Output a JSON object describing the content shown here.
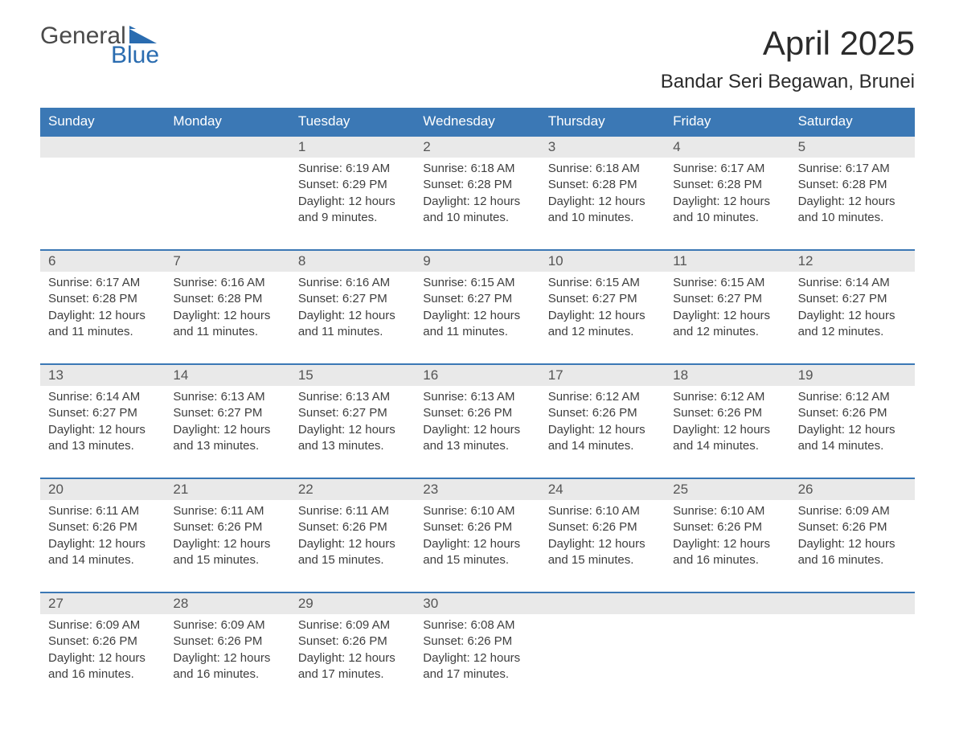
{
  "logo": {
    "text_general": "General",
    "text_blue": "Blue",
    "flag_color": "#2a6cb0"
  },
  "header": {
    "month_title": "April 2025",
    "location": "Bandar Seri Begawan, Brunei"
  },
  "colors": {
    "header_bg": "#3b78b5",
    "header_text": "#ffffff",
    "daynum_bg": "#e9e9e9",
    "row_border": "#3b78b5",
    "body_text": "#3e3e3e",
    "title_text": "#2b2b2b"
  },
  "weekdays": [
    "Sunday",
    "Monday",
    "Tuesday",
    "Wednesday",
    "Thursday",
    "Friday",
    "Saturday"
  ],
  "weeks": [
    [
      {
        "day": "",
        "sunrise": "",
        "sunset": "",
        "daylight": ""
      },
      {
        "day": "",
        "sunrise": "",
        "sunset": "",
        "daylight": ""
      },
      {
        "day": "1",
        "sunrise": "Sunrise: 6:19 AM",
        "sunset": "Sunset: 6:29 PM",
        "daylight": "Daylight: 12 hours and 9 minutes."
      },
      {
        "day": "2",
        "sunrise": "Sunrise: 6:18 AM",
        "sunset": "Sunset: 6:28 PM",
        "daylight": "Daylight: 12 hours and 10 minutes."
      },
      {
        "day": "3",
        "sunrise": "Sunrise: 6:18 AM",
        "sunset": "Sunset: 6:28 PM",
        "daylight": "Daylight: 12 hours and 10 minutes."
      },
      {
        "day": "4",
        "sunrise": "Sunrise: 6:17 AM",
        "sunset": "Sunset: 6:28 PM",
        "daylight": "Daylight: 12 hours and 10 minutes."
      },
      {
        "day": "5",
        "sunrise": "Sunrise: 6:17 AM",
        "sunset": "Sunset: 6:28 PM",
        "daylight": "Daylight: 12 hours and 10 minutes."
      }
    ],
    [
      {
        "day": "6",
        "sunrise": "Sunrise: 6:17 AM",
        "sunset": "Sunset: 6:28 PM",
        "daylight": "Daylight: 12 hours and 11 minutes."
      },
      {
        "day": "7",
        "sunrise": "Sunrise: 6:16 AM",
        "sunset": "Sunset: 6:28 PM",
        "daylight": "Daylight: 12 hours and 11 minutes."
      },
      {
        "day": "8",
        "sunrise": "Sunrise: 6:16 AM",
        "sunset": "Sunset: 6:27 PM",
        "daylight": "Daylight: 12 hours and 11 minutes."
      },
      {
        "day": "9",
        "sunrise": "Sunrise: 6:15 AM",
        "sunset": "Sunset: 6:27 PM",
        "daylight": "Daylight: 12 hours and 11 minutes."
      },
      {
        "day": "10",
        "sunrise": "Sunrise: 6:15 AM",
        "sunset": "Sunset: 6:27 PM",
        "daylight": "Daylight: 12 hours and 12 minutes."
      },
      {
        "day": "11",
        "sunrise": "Sunrise: 6:15 AM",
        "sunset": "Sunset: 6:27 PM",
        "daylight": "Daylight: 12 hours and 12 minutes."
      },
      {
        "day": "12",
        "sunrise": "Sunrise: 6:14 AM",
        "sunset": "Sunset: 6:27 PM",
        "daylight": "Daylight: 12 hours and 12 minutes."
      }
    ],
    [
      {
        "day": "13",
        "sunrise": "Sunrise: 6:14 AM",
        "sunset": "Sunset: 6:27 PM",
        "daylight": "Daylight: 12 hours and 13 minutes."
      },
      {
        "day": "14",
        "sunrise": "Sunrise: 6:13 AM",
        "sunset": "Sunset: 6:27 PM",
        "daylight": "Daylight: 12 hours and 13 minutes."
      },
      {
        "day": "15",
        "sunrise": "Sunrise: 6:13 AM",
        "sunset": "Sunset: 6:27 PM",
        "daylight": "Daylight: 12 hours and 13 minutes."
      },
      {
        "day": "16",
        "sunrise": "Sunrise: 6:13 AM",
        "sunset": "Sunset: 6:26 PM",
        "daylight": "Daylight: 12 hours and 13 minutes."
      },
      {
        "day": "17",
        "sunrise": "Sunrise: 6:12 AM",
        "sunset": "Sunset: 6:26 PM",
        "daylight": "Daylight: 12 hours and 14 minutes."
      },
      {
        "day": "18",
        "sunrise": "Sunrise: 6:12 AM",
        "sunset": "Sunset: 6:26 PM",
        "daylight": "Daylight: 12 hours and 14 minutes."
      },
      {
        "day": "19",
        "sunrise": "Sunrise: 6:12 AM",
        "sunset": "Sunset: 6:26 PM",
        "daylight": "Daylight: 12 hours and 14 minutes."
      }
    ],
    [
      {
        "day": "20",
        "sunrise": "Sunrise: 6:11 AM",
        "sunset": "Sunset: 6:26 PM",
        "daylight": "Daylight: 12 hours and 14 minutes."
      },
      {
        "day": "21",
        "sunrise": "Sunrise: 6:11 AM",
        "sunset": "Sunset: 6:26 PM",
        "daylight": "Daylight: 12 hours and 15 minutes."
      },
      {
        "day": "22",
        "sunrise": "Sunrise: 6:11 AM",
        "sunset": "Sunset: 6:26 PM",
        "daylight": "Daylight: 12 hours and 15 minutes."
      },
      {
        "day": "23",
        "sunrise": "Sunrise: 6:10 AM",
        "sunset": "Sunset: 6:26 PM",
        "daylight": "Daylight: 12 hours and 15 minutes."
      },
      {
        "day": "24",
        "sunrise": "Sunrise: 6:10 AM",
        "sunset": "Sunset: 6:26 PM",
        "daylight": "Daylight: 12 hours and 15 minutes."
      },
      {
        "day": "25",
        "sunrise": "Sunrise: 6:10 AM",
        "sunset": "Sunset: 6:26 PM",
        "daylight": "Daylight: 12 hours and 16 minutes."
      },
      {
        "day": "26",
        "sunrise": "Sunrise: 6:09 AM",
        "sunset": "Sunset: 6:26 PM",
        "daylight": "Daylight: 12 hours and 16 minutes."
      }
    ],
    [
      {
        "day": "27",
        "sunrise": "Sunrise: 6:09 AM",
        "sunset": "Sunset: 6:26 PM",
        "daylight": "Daylight: 12 hours and 16 minutes."
      },
      {
        "day": "28",
        "sunrise": "Sunrise: 6:09 AM",
        "sunset": "Sunset: 6:26 PM",
        "daylight": "Daylight: 12 hours and 16 minutes."
      },
      {
        "day": "29",
        "sunrise": "Sunrise: 6:09 AM",
        "sunset": "Sunset: 6:26 PM",
        "daylight": "Daylight: 12 hours and 17 minutes."
      },
      {
        "day": "30",
        "sunrise": "Sunrise: 6:08 AM",
        "sunset": "Sunset: 6:26 PM",
        "daylight": "Daylight: 12 hours and 17 minutes."
      },
      {
        "day": "",
        "sunrise": "",
        "sunset": "",
        "daylight": ""
      },
      {
        "day": "",
        "sunrise": "",
        "sunset": "",
        "daylight": ""
      },
      {
        "day": "",
        "sunrise": "",
        "sunset": "",
        "daylight": ""
      }
    ]
  ]
}
